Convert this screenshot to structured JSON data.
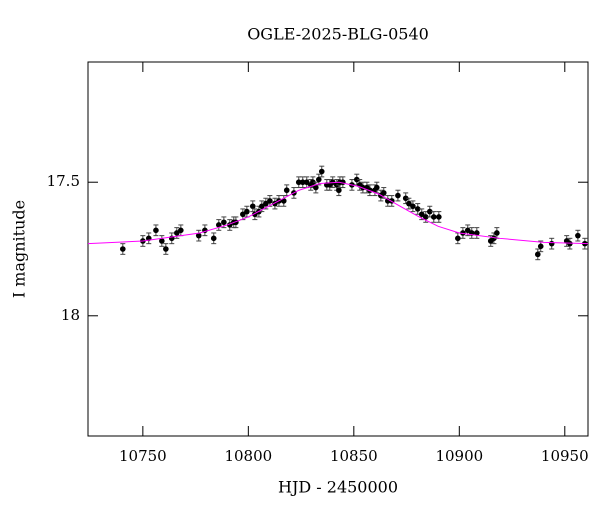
{
  "chart_data": {
    "type": "scatter",
    "title": "OGLE-2025-BLG-0540",
    "x_label": "HJD - 2450000",
    "y_label": "I magnitude",
    "xlim": [
      10724,
      10961
    ],
    "ylim": [
      18.45,
      17.05
    ],
    "xticks": [
      10750,
      10800,
      10850,
      10900,
      10950
    ],
    "yticks": [
      17.5,
      18
    ],
    "series": [
      {
        "style": "points",
        "color": "#000000",
        "x": [
          10740.5,
          10750,
          10752.8,
          10756.2,
          10759,
          10760.9,
          10763.7,
          10766.1,
          10768,
          10776.5,
          10779.4,
          10783.6,
          10786,
          10788.4,
          10791.2,
          10793.1,
          10794.1,
          10797.4,
          10799.3,
          10802.1,
          10803.1,
          10805,
          10806.4,
          10808.3,
          10810.2,
          10812.6,
          10814.5,
          10816.8,
          10818.2,
          10821.6,
          10823.9,
          10825.8,
          10827.7,
          10829.6,
          10830.6,
          10832,
          10833.4,
          10834.8,
          10837.2,
          10838.6,
          10840,
          10841.9,
          10842.9,
          10843.4,
          10844.8,
          10849.1,
          10851.4,
          10852.8,
          10854.3,
          10856.2,
          10857.6,
          10860,
          10860.9,
          10862.8,
          10864.2,
          10866.1,
          10868,
          10870.9,
          10874.6,
          10876.1,
          10878,
          10880.3,
          10882.2,
          10884.1,
          10886,
          10887.9,
          10890.3,
          10899.3,
          10901.7,
          10904,
          10905.9,
          10908.3,
          10914.9,
          10916.4,
          10917.8,
          10937.2,
          10938.6,
          10943.8,
          10950.9,
          10952.4,
          10956.2,
          10959.5
        ],
        "values": [
          17.75,
          17.72,
          17.71,
          17.68,
          17.72,
          17.75,
          17.71,
          17.69,
          17.68,
          17.7,
          17.68,
          17.71,
          17.66,
          17.65,
          17.66,
          17.65,
          17.65,
          17.62,
          17.61,
          17.59,
          17.62,
          17.61,
          17.59,
          17.58,
          17.57,
          17.58,
          17.57,
          17.57,
          17.53,
          17.54,
          17.5,
          17.5,
          17.5,
          17.51,
          17.5,
          17.52,
          17.49,
          17.46,
          17.51,
          17.51,
          17.5,
          17.51,
          17.53,
          17.5,
          17.5,
          17.51,
          17.49,
          17.51,
          17.52,
          17.52,
          17.53,
          17.53,
          17.52,
          17.55,
          17.54,
          17.57,
          17.57,
          17.55,
          17.56,
          17.58,
          17.59,
          17.6,
          17.62,
          17.63,
          17.61,
          17.63,
          17.63,
          17.71,
          17.69,
          17.68,
          17.69,
          17.69,
          17.72,
          17.71,
          17.69,
          17.77,
          17.74,
          17.73,
          17.72,
          17.73,
          17.7,
          17.73
        ],
        "errors": [
          0.02,
          0.02,
          0.02,
          0.02,
          0.02,
          0.02,
          0.02,
          0.02,
          0.02,
          0.02,
          0.02,
          0.02,
          0.02,
          0.02,
          0.02,
          0.02,
          0.02,
          0.02,
          0.02,
          0.02,
          0.02,
          0.02,
          0.02,
          0.02,
          0.02,
          0.02,
          0.02,
          0.02,
          0.02,
          0.02,
          0.02,
          0.02,
          0.02,
          0.02,
          0.02,
          0.02,
          0.02,
          0.02,
          0.02,
          0.02,
          0.02,
          0.02,
          0.02,
          0.02,
          0.02,
          0.02,
          0.02,
          0.02,
          0.02,
          0.02,
          0.02,
          0.02,
          0.02,
          0.02,
          0.02,
          0.02,
          0.02,
          0.02,
          0.02,
          0.02,
          0.02,
          0.02,
          0.02,
          0.02,
          0.02,
          0.02,
          0.02,
          0.02,
          0.02,
          0.02,
          0.02,
          0.02,
          0.02,
          0.02,
          0.02,
          0.02,
          0.02,
          0.02,
          0.02,
          0.02,
          0.02,
          0.02
        ]
      },
      {
        "style": "line",
        "color": "#ff00ff",
        "x": [
          10724,
          10750,
          10777,
          10790,
          10800,
          10812,
          10824,
          10834,
          10843,
          10852,
          10862,
          10872,
          10881,
          10890,
          10900,
          10919,
          10940,
          10961
        ],
        "values": [
          17.73,
          17.72,
          17.69,
          17.66,
          17.63,
          17.58,
          17.53,
          17.505,
          17.5,
          17.515,
          17.545,
          17.59,
          17.63,
          17.665,
          17.69,
          17.71,
          17.725,
          17.73
        ]
      }
    ]
  }
}
